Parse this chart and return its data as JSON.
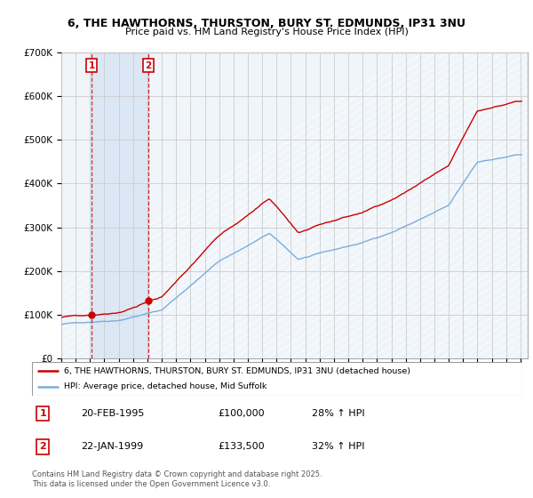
{
  "title_line1": "6, THE HAWTHORNS, THURSTON, BURY ST. EDMUNDS, IP31 3NU",
  "title_line2": "Price paid vs. HM Land Registry's House Price Index (HPI)",
  "ylim": [
    0,
    700000
  ],
  "yticks": [
    0,
    100000,
    200000,
    300000,
    400000,
    500000,
    600000,
    700000
  ],
  "xmin": 1993.0,
  "xmax": 2025.5,
  "transactions": [
    {
      "id": 1,
      "date_str": "20-FEB-1995",
      "date_x": 1995.12,
      "price": 100000,
      "pct": "28%",
      "dir": "↑"
    },
    {
      "id": 2,
      "date_str": "22-JAN-1999",
      "date_x": 1999.06,
      "price": 133500,
      "pct": "32%",
      "dir": "↑"
    }
  ],
  "legend_label_red": "6, THE HAWTHORNS, THURSTON, BURY ST. EDMUNDS, IP31 3NU (detached house)",
  "legend_label_blue": "HPI: Average price, detached house, Mid Suffolk",
  "footnote": "Contains HM Land Registry data © Crown copyright and database right 2025.\nThis data is licensed under the Open Government Licence v3.0.",
  "red_color": "#cc0000",
  "blue_color": "#7aaddc",
  "grid_color": "#cccccc",
  "bg_color": "#ffffff",
  "hatch_bg_color": "#dce8f4"
}
